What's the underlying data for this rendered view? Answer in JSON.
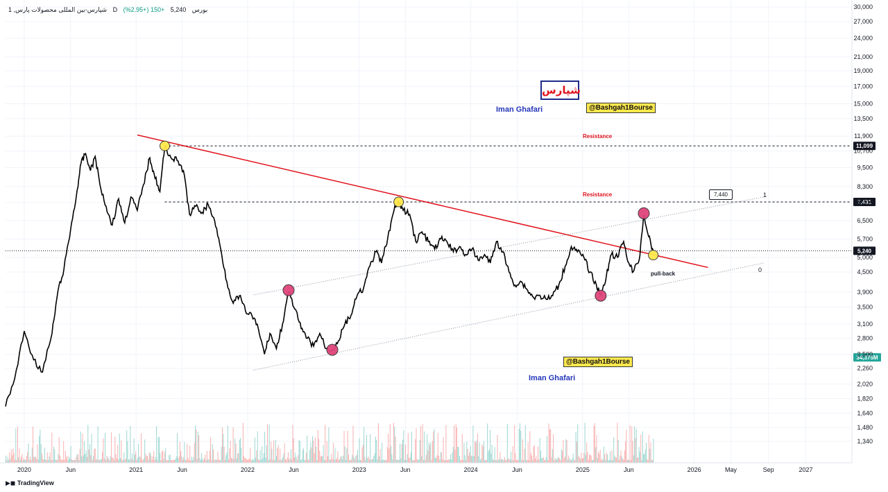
{
  "header": {
    "symbol": "شپارس-بین المللی محصولات  پارس, 1",
    "interval": "D",
    "exchange": "بورس",
    "price": "5,240",
    "change": "+150 (+2.95%)"
  },
  "annotations": {
    "logo_text": "شپارس",
    "author_top": "Iman Ghafari",
    "author_bottom": "Iman Ghafari",
    "channel_top": "@Bashgah1Bourse",
    "channel_bottom": "@Bashgah1Bourse",
    "resistance_1": "Resistance",
    "resistance_2": "Resistance",
    "pullback": "pull-back",
    "callout_value": "7,440",
    "fib_1": "1",
    "fib_0": "0"
  },
  "footer": {
    "brand": "TradingView"
  },
  "colors": {
    "trendline": "#e0131d",
    "price": "#000000",
    "vol_up": "#26a69a",
    "vol_down": "#ef5350",
    "marker_yellow": "#ffe94d",
    "marker_pink": "#e0457b"
  },
  "chart_data": {
    "type": "line",
    "scale": "log",
    "y_range": [
      1250,
      30000
    ],
    "x_range": [
      "2019-11-01",
      "2027-06-01"
    ],
    "y_ticks": [
      30000,
      27000,
      24000,
      21000,
      19000,
      17000,
      15000,
      13500,
      11900,
      10700,
      9500,
      8300,
      7400,
      6500,
      5700,
      5000,
      4500,
      3900,
      3500,
      3100,
      2800,
      2500,
      2260,
      2020,
      1820,
      1640,
      1480,
      1340
    ],
    "y_tick_labels": [
      "30,000",
      "27,000",
      "24,000",
      "21,000",
      "19,000",
      "17,000",
      "15,000",
      "13,500",
      "11,900",
      "10,700",
      "9,500",
      "8,300",
      "7,400",
      "6,500",
      "5,700",
      "5,000",
      "4,500",
      "3,900",
      "3,500",
      "3,100",
      "2,800",
      "2,500",
      "2,260",
      "2,020",
      "1,820",
      "1,640",
      "1,480",
      "1,340"
    ],
    "x_ticks": [
      {
        "date": "2020-01-01",
        "label": "2020"
      },
      {
        "date": "2020-06-01",
        "label": "Jun"
      },
      {
        "date": "2021-01-01",
        "label": "2021"
      },
      {
        "date": "2021-06-01",
        "label": "Jun"
      },
      {
        "date": "2022-01-01",
        "label": "2022"
      },
      {
        "date": "2022-06-01",
        "label": "Jun"
      },
      {
        "date": "2023-01-01",
        "label": "2023"
      },
      {
        "date": "2023-06-01",
        "label": "Jun"
      },
      {
        "date": "2024-01-01",
        "label": "2024"
      },
      {
        "date": "2024-06-01",
        "label": "Jun"
      },
      {
        "date": "2025-01-01",
        "label": "2025"
      },
      {
        "date": "2025-06-01",
        "label": "Jun"
      },
      {
        "date": "2026-01-01",
        "label": "2026"
      },
      {
        "date": "2026-05-01",
        "label": "May"
      },
      {
        "date": "2026-09-01",
        "label": "Sep"
      },
      {
        "date": "2027-01-01",
        "label": "2027"
      }
    ],
    "series": [
      {
        "points": [
          [
            "2019-11-01",
            1720
          ],
          [
            "2019-12-01",
            2100
          ],
          [
            "2020-01-01",
            2950
          ],
          [
            "2020-02-01",
            2400
          ],
          [
            "2020-03-01",
            2200
          ],
          [
            "2020-04-01",
            2900
          ],
          [
            "2020-04-20",
            3900
          ],
          [
            "2020-05-10",
            4600
          ],
          [
            "2020-06-01",
            6100
          ],
          [
            "2020-06-20",
            7800
          ],
          [
            "2020-07-05",
            9800
          ],
          [
            "2020-07-20",
            10500
          ],
          [
            "2020-08-05",
            9300
          ],
          [
            "2020-08-20",
            10300
          ],
          [
            "2020-09-05",
            8400
          ],
          [
            "2020-09-25",
            7200
          ],
          [
            "2020-10-15",
            6300
          ],
          [
            "2020-11-05",
            7600
          ],
          [
            "2020-11-25",
            6400
          ],
          [
            "2020-12-15",
            7700
          ],
          [
            "2021-01-05",
            7000
          ],
          [
            "2021-01-25",
            8400
          ],
          [
            "2021-02-15",
            10200
          ],
          [
            "2021-03-01",
            9100
          ],
          [
            "2021-03-20",
            8000
          ],
          [
            "2021-04-05",
            11099
          ],
          [
            "2021-04-25",
            10200
          ],
          [
            "2021-05-15",
            10000
          ],
          [
            "2021-06-05",
            9300
          ],
          [
            "2021-06-25",
            6800
          ],
          [
            "2021-07-15",
            7200
          ],
          [
            "2021-08-05",
            6900
          ],
          [
            "2021-08-25",
            7300
          ],
          [
            "2021-09-15",
            6500
          ],
          [
            "2021-10-05",
            5300
          ],
          [
            "2021-10-25",
            4200
          ],
          [
            "2021-11-15",
            3600
          ],
          [
            "2021-12-05",
            3800
          ],
          [
            "2021-12-25",
            3400
          ],
          [
            "2022-01-15",
            3300
          ],
          [
            "2022-02-05",
            3000
          ],
          [
            "2022-02-25",
            2500
          ],
          [
            "2022-03-15",
            2900
          ],
          [
            "2022-04-05",
            2600
          ],
          [
            "2022-04-25",
            3100
          ],
          [
            "2022-05-15",
            3900
          ],
          [
            "2022-06-05",
            3450
          ],
          [
            "2022-06-25",
            3000
          ],
          [
            "2022-07-15",
            2800
          ],
          [
            "2022-08-05",
            2650
          ],
          [
            "2022-08-25",
            2900
          ],
          [
            "2022-09-15",
            2600
          ],
          [
            "2022-10-05",
            2580
          ],
          [
            "2022-10-25",
            2750
          ],
          [
            "2022-11-15",
            3100
          ],
          [
            "2022-12-05",
            3300
          ],
          [
            "2022-12-25",
            3800
          ],
          [
            "2023-01-15",
            4000
          ],
          [
            "2023-02-05",
            4700
          ],
          [
            "2023-02-25",
            5200
          ],
          [
            "2023-03-15",
            4800
          ],
          [
            "2023-04-05",
            5800
          ],
          [
            "2023-04-25",
            7000
          ],
          [
            "2023-05-10",
            7431
          ],
          [
            "2023-05-25",
            7000
          ],
          [
            "2023-06-15",
            6800
          ],
          [
            "2023-07-05",
            5600
          ],
          [
            "2023-07-25",
            6000
          ],
          [
            "2023-08-15",
            5600
          ],
          [
            "2023-09-05",
            5300
          ],
          [
            "2023-09-25",
            5700
          ],
          [
            "2023-10-15",
            5600
          ],
          [
            "2023-11-05",
            5200
          ],
          [
            "2023-11-25",
            5400
          ],
          [
            "2023-12-15",
            5100
          ],
          [
            "2024-01-05",
            5300
          ],
          [
            "2024-01-25",
            4900
          ],
          [
            "2024-02-15",
            5100
          ],
          [
            "2024-03-05",
            4800
          ],
          [
            "2024-03-25",
            5600
          ],
          [
            "2024-04-15",
            5200
          ],
          [
            "2024-05-05",
            4500
          ],
          [
            "2024-05-25",
            4100
          ],
          [
            "2024-06-15",
            4200
          ],
          [
            "2024-07-05",
            3950
          ],
          [
            "2024-07-25",
            3750
          ],
          [
            "2024-08-15",
            3800
          ],
          [
            "2024-09-05",
            3700
          ],
          [
            "2024-09-25",
            3800
          ],
          [
            "2024-10-15",
            4100
          ],
          [
            "2024-11-05",
            4700
          ],
          [
            "2024-11-25",
            5400
          ],
          [
            "2024-12-15",
            5200
          ],
          [
            "2025-01-05",
            5000
          ],
          [
            "2025-01-25",
            4500
          ],
          [
            "2025-02-15",
            4100
          ],
          [
            "2025-03-01",
            3800
          ],
          [
            "2025-03-20",
            4400
          ],
          [
            "2025-04-05",
            5100
          ],
          [
            "2025-04-25",
            5000
          ],
          [
            "2025-05-15",
            5600
          ],
          [
            "2025-06-01",
            4800
          ],
          [
            "2025-06-15",
            4500
          ],
          [
            "2025-07-05",
            4900
          ],
          [
            "2025-07-20",
            6800
          ],
          [
            "2025-08-05",
            5800
          ],
          [
            "2025-08-20",
            5240
          ]
        ]
      }
    ],
    "volume": {
      "levels": "",
      "last_label": "34,375M"
    },
    "horizontal_levels": [
      {
        "value": 11099,
        "label": "11,099",
        "style": "dashed"
      },
      {
        "value": 7431,
        "label": "7,431",
        "style": "dashed"
      },
      {
        "value": 5240,
        "label": "5,240",
        "style": "dotted"
      }
    ],
    "trendlines": [
      {
        "from": [
          "2021-01-05",
          12000
        ],
        "to": [
          "2026-02-15",
          4650
        ],
        "color": "#e0131d",
        "style": "solid"
      },
      {
        "from": [
          "2022-01-20",
          3820
        ],
        "to": [
          "2026-08-15",
          7700
        ],
        "style": "dotted"
      },
      {
        "from": [
          "2022-01-20",
          2230
        ],
        "to": [
          "2026-08-15",
          4800
        ],
        "style": "dotted"
      }
    ],
    "markers": [
      {
        "date": "2021-04-05",
        "value": 11099,
        "color": "yellow"
      },
      {
        "date": "2023-05-10",
        "value": 7431,
        "color": "yellow"
      },
      {
        "date": "2025-08-20",
        "value": 5080,
        "color": "yellow"
      },
      {
        "date": "2022-05-15",
        "value": 3950,
        "color": "pink"
      },
      {
        "date": "2022-10-05",
        "value": 2580,
        "color": "pink"
      },
      {
        "date": "2025-03-01",
        "value": 3800,
        "color": "pink"
      },
      {
        "date": "2025-07-20",
        "value": 6850,
        "color": "pink"
      }
    ]
  }
}
